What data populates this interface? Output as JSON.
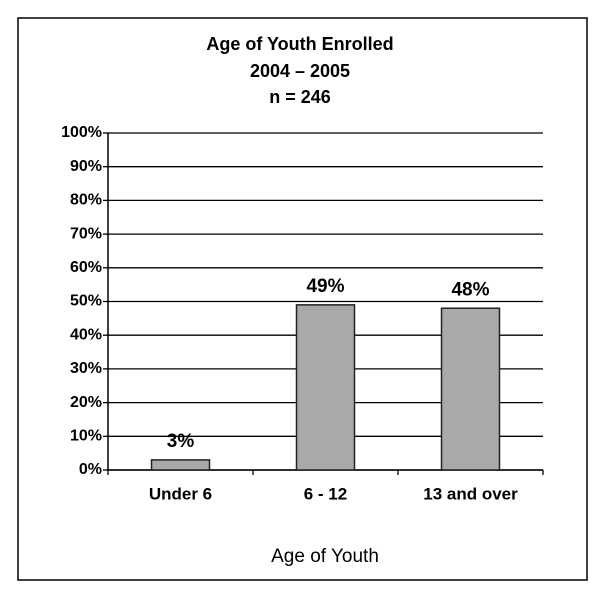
{
  "chart_data": {
    "type": "bar",
    "title": "Age of Youth Enrolled",
    "subtitle": [
      "2004 – 2005",
      "n = 246"
    ],
    "x_label": "Age of Youth",
    "categories": [
      "Under 6",
      "6 - 12",
      "13 and over"
    ],
    "values": [
      3,
      49,
      48
    ],
    "value_labels": [
      "3%",
      "49%",
      "48%"
    ],
    "color": "#a9a9a9",
    "ylim": [
      0,
      100
    ],
    "yticks": [
      {
        "value": 0,
        "label": "0%"
      },
      {
        "value": 10,
        "label": "10%"
      },
      {
        "value": 20,
        "label": "20%"
      },
      {
        "value": 30,
        "label": "30%"
      },
      {
        "value": 40,
        "label": "40%"
      },
      {
        "value": 50,
        "label": "50%"
      },
      {
        "value": 60,
        "label": "60%"
      },
      {
        "value": 70,
        "label": "70%"
      },
      {
        "value": 80,
        "label": "80%"
      },
      {
        "value": 90,
        "label": "90%"
      },
      {
        "value": 100,
        "label": "100%"
      }
    ],
    "grid": true
  }
}
